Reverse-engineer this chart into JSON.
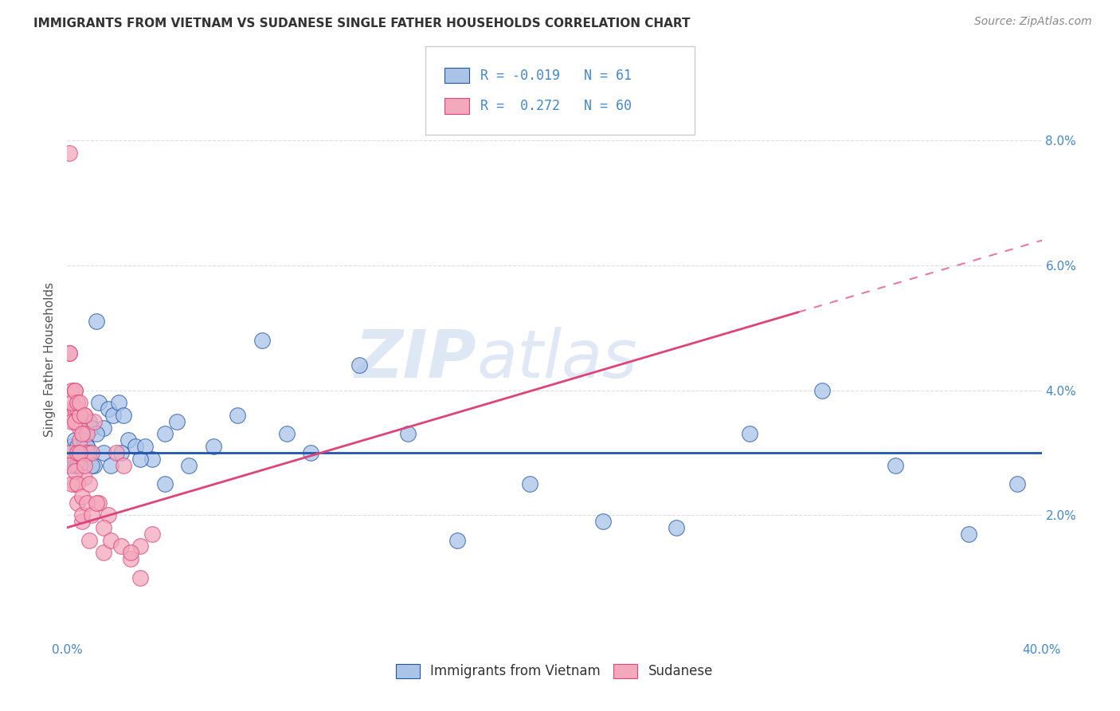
{
  "title": "IMMIGRANTS FROM VIETNAM VS SUDANESE SINGLE FATHER HOUSEHOLDS CORRELATION CHART",
  "source": "Source: ZipAtlas.com",
  "ylabel": "Single Father Households",
  "xlim": [
    0.0,
    0.4
  ],
  "ylim": [
    0.0,
    0.09
  ],
  "xticks": [
    0.0,
    0.1,
    0.2,
    0.3,
    0.4
  ],
  "xticklabels": [
    "0.0%",
    "",
    "",
    "",
    "40.0%"
  ],
  "yticks": [
    0.02,
    0.04,
    0.06,
    0.08
  ],
  "yticklabels": [
    "2.0%",
    "4.0%",
    "6.0%",
    "8.0%"
  ],
  "legend_labels": [
    "Immigrants from Vietnam",
    "Sudanese"
  ],
  "series1_color": "#aac4e8",
  "series2_color": "#f4a8bc",
  "line1_color": "#2255aa",
  "line2_color": "#dd4477",
  "R1": -0.019,
  "N1": 61,
  "R2": 0.272,
  "N2": 60,
  "watermark_zip": "ZIP",
  "watermark_atlas": "atlas",
  "background_color": "#ffffff",
  "grid_color": "#dddddd",
  "title_color": "#333333",
  "axis_color": "#4488cc",
  "series1_x": [
    0.001,
    0.001,
    0.002,
    0.002,
    0.003,
    0.003,
    0.003,
    0.004,
    0.004,
    0.005,
    0.005,
    0.006,
    0.006,
    0.007,
    0.007,
    0.008,
    0.009,
    0.01,
    0.011,
    0.012,
    0.013,
    0.015,
    0.017,
    0.019,
    0.021,
    0.023,
    0.025,
    0.028,
    0.032,
    0.035,
    0.04,
    0.045,
    0.05,
    0.06,
    0.07,
    0.08,
    0.09,
    0.1,
    0.12,
    0.14,
    0.16,
    0.19,
    0.22,
    0.25,
    0.28,
    0.31,
    0.34,
    0.37,
    0.39,
    0.005,
    0.006,
    0.007,
    0.008,
    0.009,
    0.01,
    0.012,
    0.015,
    0.018,
    0.022,
    0.03,
    0.04
  ],
  "series1_y": [
    0.03,
    0.028,
    0.031,
    0.029,
    0.032,
    0.029,
    0.028,
    0.031,
    0.028,
    0.03,
    0.028,
    0.033,
    0.029,
    0.032,
    0.03,
    0.031,
    0.035,
    0.034,
    0.028,
    0.051,
    0.038,
    0.034,
    0.037,
    0.036,
    0.038,
    0.036,
    0.032,
    0.031,
    0.031,
    0.029,
    0.033,
    0.035,
    0.028,
    0.031,
    0.036,
    0.048,
    0.033,
    0.03,
    0.044,
    0.033,
    0.016,
    0.025,
    0.019,
    0.018,
    0.033,
    0.04,
    0.028,
    0.017,
    0.025,
    0.03,
    0.03,
    0.029,
    0.031,
    0.03,
    0.028,
    0.033,
    0.03,
    0.028,
    0.03,
    0.029,
    0.025
  ],
  "series2_x": [
    0.001,
    0.001,
    0.002,
    0.002,
    0.002,
    0.003,
    0.003,
    0.003,
    0.003,
    0.004,
    0.004,
    0.004,
    0.005,
    0.005,
    0.005,
    0.006,
    0.006,
    0.007,
    0.007,
    0.008,
    0.008,
    0.009,
    0.01,
    0.011,
    0.013,
    0.015,
    0.017,
    0.02,
    0.023,
    0.026,
    0.03,
    0.035,
    0.001,
    0.001,
    0.002,
    0.002,
    0.003,
    0.003,
    0.004,
    0.004,
    0.005,
    0.005,
    0.006,
    0.007,
    0.008,
    0.009,
    0.01,
    0.012,
    0.015,
    0.018,
    0.022,
    0.026,
    0.03,
    0.001,
    0.002,
    0.003,
    0.004,
    0.005,
    0.006,
    0.007
  ],
  "series2_y": [
    0.046,
    0.046,
    0.037,
    0.036,
    0.04,
    0.04,
    0.037,
    0.035,
    0.025,
    0.038,
    0.037,
    0.022,
    0.034,
    0.032,
    0.028,
    0.019,
    0.02,
    0.036,
    0.026,
    0.03,
    0.033,
    0.016,
    0.03,
    0.035,
    0.022,
    0.014,
    0.02,
    0.03,
    0.028,
    0.013,
    0.015,
    0.017,
    0.03,
    0.028,
    0.035,
    0.025,
    0.035,
    0.027,
    0.03,
    0.025,
    0.036,
    0.03,
    0.023,
    0.028,
    0.022,
    0.025,
    0.02,
    0.022,
    0.018,
    0.016,
    0.015,
    0.014,
    0.01,
    0.078,
    0.038,
    0.04,
    0.038,
    0.038,
    0.033,
    0.036
  ],
  "line1_slope": 0.0,
  "line1_intercept": 0.03,
  "line2_slope": 0.115,
  "line2_intercept": 0.018
}
